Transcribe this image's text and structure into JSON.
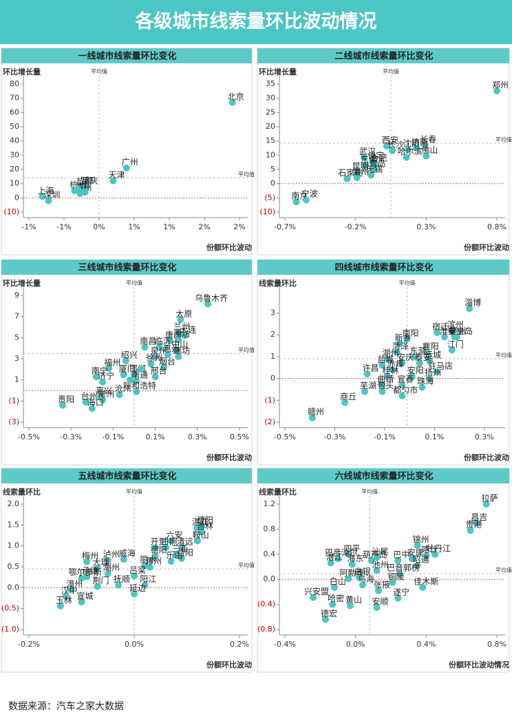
{
  "title": "各级城市线索量环比波动情况",
  "source": "数据来源：汽车之家大数据",
  "chart_data": [
    {
      "type": "scatter",
      "title": "一线城市线索量环比变化",
      "y_label": "环比增长量",
      "x_label": "份额环比波动",
      "avg_label": "平均值",
      "avg_x": 0,
      "avg_y": 14,
      "color": "#4cc6c4",
      "xlim": [
        -1,
        2
      ],
      "ylim": [
        -10,
        80
      ],
      "xticks": [
        {
          "value": -1,
          "label": "-1%"
        },
        {
          "value": -0.5,
          "label": "-1%"
        },
        {
          "value": 0,
          "label": "0%"
        },
        {
          "value": 0.5,
          "label": "1%"
        },
        {
          "value": 1,
          "label": "1%"
        },
        {
          "value": 1.5,
          "label": "2%"
        },
        {
          "value": 2,
          "label": "2%"
        }
      ],
      "yticks": [
        80,
        70,
        60,
        50,
        40,
        30,
        20,
        10,
        0,
        {
          "value": -10,
          "label": "(10)"
        }
      ],
      "points": [
        {
          "label": "北京",
          "x": 1.9,
          "y": 67
        },
        {
          "label": "广州",
          "x": 0.39,
          "y": 21
        },
        {
          "label": "天津",
          "x": 0.2,
          "y": 12
        },
        {
          "label": "重庆",
          "x": -0.18,
          "y": 8
        },
        {
          "label": "成都",
          "x": -0.25,
          "y": 8
        },
        {
          "label": "杭州",
          "x": -0.35,
          "y": 5
        },
        {
          "label": "苏州",
          "x": -0.27,
          "y": 3
        },
        {
          "label": "上海",
          "x": -0.81,
          "y": 1
        },
        {
          "label": "深圳",
          "x": -0.72,
          "y": -2
        },
        {
          "x": -0.3,
          "y": 6
        },
        {
          "x": -0.2,
          "y": 4
        }
      ]
    },
    {
      "type": "scatter",
      "title": "二线城市线索量环比变化",
      "y_label": "环比增长量",
      "x_label": "份额环比波动",
      "avg_label": "平均值",
      "avg_x": 0.05,
      "avg_y": 14.2,
      "color": "#4cc6c4",
      "xlim": [
        -0.7,
        0.8
      ],
      "ylim": [
        -10,
        35
      ],
      "xticks": [
        {
          "value": -0.7,
          "label": "-0.7%"
        },
        {
          "value": -0.2,
          "label": "-0.2%"
        },
        {
          "value": 0.3,
          "label": "0.3%"
        },
        {
          "value": 0.8,
          "label": "0.8%"
        }
      ],
      "yticks": [
        35,
        30,
        25,
        20,
        15,
        10,
        5,
        0,
        {
          "value": -5,
          "label": "(5)"
        },
        {
          "value": -10,
          "label": "(10)"
        }
      ],
      "points": [
        {
          "label": "郑州",
          "x": 0.8,
          "y": 32.6
        },
        {
          "label": "长春",
          "x": 0.29,
          "y": 13.5
        },
        {
          "label": "济南",
          "x": 0.23,
          "y": 12.5
        },
        {
          "label": "沈阳",
          "x": 0.17,
          "y": 12
        },
        {
          "label": "佛山",
          "x": 0.3,
          "y": 9.7
        },
        {
          "label": "哈尔滨",
          "x": 0.16,
          "y": 9.2
        },
        {
          "label": "西安",
          "x": 0.02,
          "y": 13.2
        },
        {
          "label": "长沙",
          "x": 0.06,
          "y": 11.6
        },
        {
          "label": "保定",
          "x": -0.08,
          "y": 7.8
        },
        {
          "label": "武汉",
          "x": -0.14,
          "y": 9.2
        },
        {
          "label": "东莞",
          "x": -0.13,
          "y": 6.4
        },
        {
          "label": "合肥",
          "x": -0.06,
          "y": 6.9
        },
        {
          "label": "昆明",
          "x": -0.19,
          "y": 4
        },
        {
          "label": "青岛",
          "x": -0.07,
          "y": 5
        },
        {
          "label": "无锡",
          "x": -0.09,
          "y": 3
        },
        {
          "label": "石家庄",
          "x": -0.26,
          "y": 1.7
        },
        {
          "label": "温州",
          "x": -0.19,
          "y": 2.1
        },
        {
          "label": "南京",
          "x": -0.62,
          "y": -6.4
        },
        {
          "label": "宁波",
          "x": -0.55,
          "y": -5.7
        }
      ]
    },
    {
      "type": "scatter",
      "title": "三线城市线索量环比变化",
      "y_label": "环比增长量",
      "x_label": "份额环比波动",
      "avg_label": "平均值",
      "avg_x": 0,
      "avg_y": 3.5,
      "color": "#4cc6c4",
      "xlim": [
        -0.5,
        0.5
      ],
      "ylim": [
        -3,
        9
      ],
      "xticks": [
        {
          "value": -0.5,
          "label": "-0.5%"
        },
        {
          "value": -0.3,
          "label": "-0.3%"
        },
        {
          "value": -0.1,
          "label": "-0.1%"
        },
        {
          "value": 0.1,
          "label": "0.1%"
        },
        {
          "value": 0.3,
          "label": "0.3%"
        },
        {
          "value": 0.5,
          "label": "0.5%"
        }
      ],
      "yticks": [
        9,
        7,
        5,
        3,
        1,
        {
          "value": -1,
          "label": "(1)"
        },
        {
          "value": -3,
          "label": "(3)"
        }
      ],
      "points": [
        {
          "label": "乌鲁木齐",
          "x": 0.35,
          "y": 8.2
        },
        {
          "label": "太原",
          "x": 0.22,
          "y": 6.7
        },
        {
          "label": "兰州",
          "x": 0.21,
          "y": 5.5
        },
        {
          "label": "大连",
          "x": 0.24,
          "y": 5.2
        },
        {
          "label": "唐山",
          "x": 0.17,
          "y": 4.7
        },
        {
          "label": "潍坊",
          "x": 0.21,
          "y": 4.8
        },
        {
          "label": "南昌",
          "x": 0.05,
          "y": 4.1
        },
        {
          "label": "临沂",
          "x": 0.12,
          "y": 4.1
        },
        {
          "label": "中山",
          "x": 0.2,
          "y": 3.8
        },
        {
          "label": "泉州",
          "x": 0.1,
          "y": 3.2
        },
        {
          "label": "惠州",
          "x": 0.16,
          "y": 3.4
        },
        {
          "label": "廊坊",
          "x": 0.21,
          "y": 3.2
        },
        {
          "label": "绍兴",
          "x": -0.04,
          "y": 2.8
        },
        {
          "label": "福州",
          "x": -0.12,
          "y": 2.1
        },
        {
          "label": "徐州",
          "x": 0.08,
          "y": 2.5
        },
        {
          "label": "烟台",
          "x": 0.14,
          "y": 2.2
        },
        {
          "label": "厦门",
          "x": -0.05,
          "y": 1.5
        },
        {
          "label": "邯郸",
          "x": 0,
          "y": 1.5
        },
        {
          "label": "邢台",
          "x": 0.1,
          "y": 1.3
        },
        {
          "label": "南宁",
          "x": -0.18,
          "y": 1.3
        },
        {
          "label": "济宁",
          "x": -0.15,
          "y": 0.8
        },
        {
          "label": "南通",
          "x": 0.01,
          "y": 0.9
        },
        {
          "label": "嘉兴",
          "x": -0.16,
          "y": -0.6
        },
        {
          "label": "沧州",
          "x": -0.07,
          "y": -0.4
        },
        {
          "label": "呼和浩特",
          "x": 0.01,
          "y": -0.1
        },
        {
          "label": "贵阳",
          "x": -0.34,
          "y": -1.4
        },
        {
          "label": "台州",
          "x": -0.23,
          "y": -1.1
        },
        {
          "label": "常州",
          "x": -0.15,
          "y": -0.9
        },
        {
          "label": "海口",
          "x": -0.2,
          "y": -1.7
        },
        {
          "x": 0.03,
          "y": 2
        },
        {
          "x": -0.02,
          "y": 1
        }
      ]
    },
    {
      "type": "scatter",
      "title": "四线城市线索量环比变化",
      "y_label": "线索量环比",
      "x_label": "份额环比波动",
      "avg_label": "平均值",
      "avg_x": -0.01,
      "avg_y": 0.9,
      "color": "#4cc6c4",
      "xlim": [
        -0.5,
        0.35
      ],
      "ylim": [
        -2,
        3.8
      ],
      "xticks": [
        {
          "value": -0.5,
          "label": "-0.5%"
        },
        {
          "value": -0.3,
          "label": "-0.3%"
        },
        {
          "value": -0.1,
          "label": "-0.1%"
        },
        {
          "value": 0.1,
          "label": "0.1%"
        },
        {
          "value": 0.3,
          "label": "0.3%"
        }
      ],
      "yticks": [
        3,
        2,
        1,
        0,
        {
          "value": -1,
          "label": "(1)"
        },
        {
          "value": -2,
          "label": "(2)"
        }
      ],
      "points": [
        {
          "label": "淄博",
          "x": 0.24,
          "y": 3.2
        },
        {
          "label": "滨州",
          "x": 0.17,
          "y": 2.2
        },
        {
          "label": "宿迁",
          "x": 0.11,
          "y": 2.1
        },
        {
          "label": "德州",
          "x": 0.18,
          "y": 1.9
        },
        {
          "label": "秦皇岛",
          "x": 0.19,
          "y": 1.9
        },
        {
          "label": "淮安",
          "x": 0.14,
          "y": 1.9
        },
        {
          "label": "南阳",
          "x": -0.01,
          "y": 1.8
        },
        {
          "label": "新乡",
          "x": -0.04,
          "y": 1.6
        },
        {
          "label": "江门",
          "x": 0.17,
          "y": 1.3
        },
        {
          "label": "菏泽",
          "x": -0.05,
          "y": 1.2
        },
        {
          "label": "襄阳",
          "x": 0.07,
          "y": 1.2
        },
        {
          "label": "东营",
          "x": 0.02,
          "y": 1
        },
        {
          "label": "湖州",
          "x": -0.09,
          "y": 0.9
        },
        {
          "label": "运城",
          "x": 0.08,
          "y": 0.8
        },
        {
          "label": "盐城",
          "x": -0.11,
          "y": 0.6
        },
        {
          "label": "安庆",
          "x": -0.03,
          "y": 0.7
        },
        {
          "label": "泰安",
          "x": 0.04,
          "y": 0.7
        },
        {
          "label": "赤峰",
          "x": -0.07,
          "y": 0.4
        },
        {
          "label": "驻马店",
          "x": 0.11,
          "y": 0.3
        },
        {
          "label": "许昌",
          "x": -0.17,
          "y": 0.2
        },
        {
          "label": "桂林",
          "x": -0.09,
          "y": 0.1
        },
        {
          "label": "安阳",
          "x": 0.01,
          "y": 0.1
        },
        {
          "label": "扬州",
          "x": 0.08,
          "y": 0
        },
        {
          "label": "曲靖",
          "x": -0.11,
          "y": -0.3
        },
        {
          "label": "宜春",
          "x": -0.03,
          "y": -0.3
        },
        {
          "label": "珠海",
          "x": 0.05,
          "y": -0.4
        },
        {
          "label": "芜湖",
          "x": -0.18,
          "y": -0.6
        },
        {
          "label": "包头",
          "x": -0.11,
          "y": -0.6
        },
        {
          "label": "都匀市",
          "x": -0.03,
          "y": -0.8
        },
        {
          "label": "商丘",
          "x": -0.26,
          "y": -1.1
        },
        {
          "label": "赣州",
          "x": -0.39,
          "y": -1.8
        }
      ]
    },
    {
      "type": "scatter",
      "title": "五线城市线索量环比变化",
      "y_label": "线索量环比",
      "x_label": "份额环比波动",
      "avg_label": "平均值",
      "avg_x": 0,
      "avg_y": 0.45,
      "color": "#4cc6c4",
      "xlim": [
        -0.2,
        0.2
      ],
      "ylim": [
        -1,
        2
      ],
      "xticks": [
        {
          "value": -0.2,
          "label": "-0.2%"
        },
        {
          "value": 0,
          "label": "0.0%"
        },
        {
          "value": 0.2,
          "label": "0.2%"
        }
      ],
      "yticks": [
        {
          "value": 2,
          "label": "2.0"
        },
        1.5,
        {
          "value": 1,
          "label": "1.0"
        },
        0.5,
        {
          "value": 0,
          "label": "0.0"
        },
        {
          "value": -0.5,
          "label": "(0.5)"
        },
        {
          "value": -1,
          "label": "(1.0)"
        }
      ],
      "points": [
        {
          "label": "濮阳",
          "x": 0.128,
          "y": 1.47
        },
        {
          "label": "湛江",
          "x": 0.119,
          "y": 1.43
        },
        {
          "label": "吉林",
          "x": 0.128,
          "y": 1.33
        },
        {
          "label": "六安",
          "x": 0.07,
          "y": 1.12
        },
        {
          "label": "鞍山",
          "x": 0.12,
          "y": 1.12
        },
        {
          "label": "开封",
          "x": 0.04,
          "y": 0.96
        },
        {
          "label": "日照",
          "x": 0.06,
          "y": 0.96
        },
        {
          "label": "清远",
          "x": 0.09,
          "y": 0.96
        },
        {
          "label": "三亚",
          "x": 0.08,
          "y": 0.79
        },
        {
          "label": "益阳",
          "x": 0.09,
          "y": 0.7
        },
        {
          "label": "德阳",
          "x": 0.04,
          "y": 0.76
        },
        {
          "label": "乐山",
          "x": 0.07,
          "y": 0.63
        },
        {
          "label": "泸州",
          "x": -0.05,
          "y": 0.66
        },
        {
          "label": "威海",
          "x": -0.02,
          "y": 0.68
        },
        {
          "label": "梅州",
          "x": -0.09,
          "y": 0.62
        },
        {
          "label": "丽水",
          "x": 0.02,
          "y": 0.53
        },
        {
          "label": "滁州",
          "x": 0.03,
          "y": 0.49
        },
        {
          "label": "大理",
          "x": -0.07,
          "y": 0.47
        },
        {
          "label": "承德",
          "x": -0.09,
          "y": 0.26
        },
        {
          "label": "潮州",
          "x": -0.05,
          "y": 0.34
        },
        {
          "label": "鄂尔多斯",
          "x": -0.1,
          "y": 0.23
        },
        {
          "label": "吕梁",
          "x": 0,
          "y": 0.28
        },
        {
          "label": "阳江",
          "x": 0.02,
          "y": 0.06
        },
        {
          "label": "荆门",
          "x": -0.07,
          "y": 0.03
        },
        {
          "label": "抚顺",
          "x": -0.03,
          "y": 0.06
        },
        {
          "label": "漳州",
          "x": -0.12,
          "y": -0.05
        },
        {
          "label": "汉中",
          "x": -0.13,
          "y": -0.21
        },
        {
          "label": "延边",
          "x": 0,
          "y": -0.15
        },
        {
          "label": "宣城",
          "x": -0.1,
          "y": -0.34
        },
        {
          "label": "玉林",
          "x": -0.14,
          "y": -0.44
        }
      ]
    },
    {
      "type": "scatter",
      "title": "六线城市线索量环比变化",
      "y_label": "线索量环比",
      "x_label": "份额环比波动情况",
      "avg_label": "平均值",
      "avg_x": 0.08,
      "avg_y": 0.09,
      "color": "#4cc6c4",
      "xlim": [
        -0.4,
        0.8
      ],
      "ylim": [
        -0.8,
        1.2
      ],
      "xticks": [
        {
          "value": -0.4,
          "label": "-0.4%"
        },
        {
          "value": 0,
          "label": "0.0%"
        },
        {
          "value": 0.4,
          "label": "0.4%"
        },
        {
          "value": 0.8,
          "label": "0.8%"
        }
      ],
      "yticks": [
        1.2,
        0.8,
        0.4,
        {
          "value": 0,
          "label": "0.0"
        },
        {
          "value": -0.4,
          "label": "(0.4)"
        },
        {
          "value": -0.8,
          "label": "(0.8)"
        }
      ],
      "points": [
        {
          "label": "拉萨",
          "x": 0.74,
          "y": 1.2
        },
        {
          "label": "昌吉",
          "x": 0.68,
          "y": 0.9
        },
        {
          "label": "贵港",
          "x": 0.65,
          "y": 0.78
        },
        {
          "label": "锦州",
          "x": 0.35,
          "y": 0.54
        },
        {
          "label": "牡丹江",
          "x": 0.45,
          "y": 0.4
        },
        {
          "label": "安康",
          "x": 0.32,
          "y": 0.33
        },
        {
          "label": "喀什",
          "x": 0.4,
          "y": 0.38
        },
        {
          "label": "汕尾",
          "x": 0.12,
          "y": 0.35
        },
        {
          "label": "四平",
          "x": -0.04,
          "y": 0.4
        },
        {
          "label": "巴彦淖尔",
          "x": -0.1,
          "y": 0.33
        },
        {
          "label": "葫芦岛",
          "x": 0.09,
          "y": 0.3
        },
        {
          "label": "巴中",
          "x": 0.24,
          "y": 0.3
        },
        {
          "label": "潜江",
          "x": -0.14,
          "y": 0.26
        },
        {
          "label": "海东",
          "x": -0.02,
          "y": 0.24
        },
        {
          "label": "昭通",
          "x": 0.35,
          "y": 0.22
        },
        {
          "label": "池州",
          "x": 0.12,
          "y": 0.14
        },
        {
          "label": "巴音郭楞",
          "x": 0.25,
          "y": 0.09
        },
        {
          "label": "阿勒泰",
          "x": -0.04,
          "y": 0.01
        },
        {
          "label": "白银",
          "x": 0.02,
          "y": 0.03
        },
        {
          "label": "铜陵",
          "x": 0.21,
          "y": -0.05
        },
        {
          "label": "佳木斯",
          "x": 0.38,
          "y": -0.13
        },
        {
          "label": "白山",
          "x": -0.12,
          "y": -0.13
        },
        {
          "label": "乌海",
          "x": 0.04,
          "y": -0.09
        },
        {
          "label": "张掖",
          "x": 0.13,
          "y": -0.18
        },
        {
          "label": "遂宁",
          "x": 0.24,
          "y": -0.3
        },
        {
          "label": "兴安盟",
          "x": -0.24,
          "y": -0.29
        },
        {
          "label": "哈密",
          "x": -0.13,
          "y": -0.4
        },
        {
          "label": "黄山",
          "x": -0.03,
          "y": -0.42
        },
        {
          "label": "安顺",
          "x": 0.12,
          "y": -0.45
        },
        {
          "label": "德宏",
          "x": -0.17,
          "y": -0.64
        }
      ]
    }
  ]
}
